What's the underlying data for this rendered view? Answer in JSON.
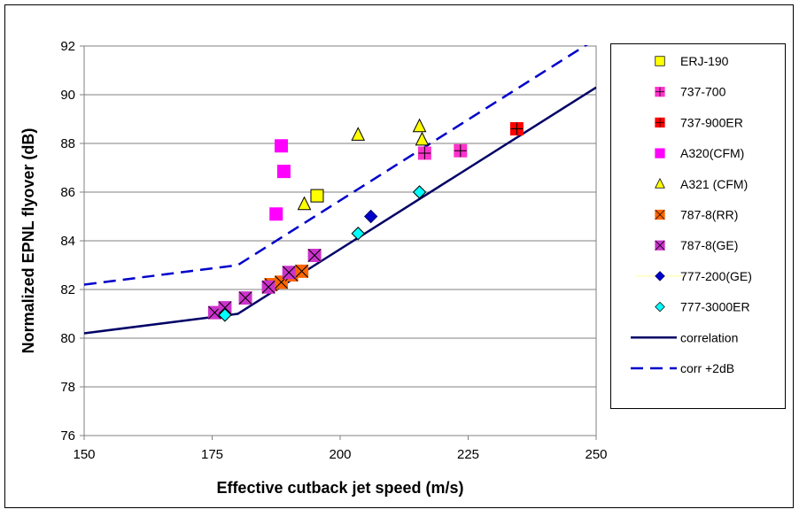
{
  "chart_data": {
    "type": "scatter",
    "xlabel": "Effective cutback jet speed (m/s)",
    "ylabel": "Normalized EPNL flyover  (dB)",
    "xlim": [
      150,
      250
    ],
    "ylim": [
      76,
      92
    ],
    "x_ticks": [
      "150",
      "175",
      "200",
      "225",
      "250"
    ],
    "y_ticks": [
      "76",
      "78",
      "80",
      "82",
      "84",
      "86",
      "88",
      "90",
      "92"
    ],
    "grid": "horizontal",
    "legend_position": "right",
    "series": [
      {
        "name": "ERJ-190",
        "marker": "square",
        "color": "#ffff00",
        "stroke": "#000000",
        "cross": false,
        "points": [
          [
            195.5,
            85.85
          ]
        ]
      },
      {
        "name": "737-700",
        "marker": "square",
        "color": "#ff33cc",
        "stroke": "#ff33cc",
        "cross": "plus",
        "points": [
          [
            216.5,
            87.6
          ],
          [
            223.5,
            87.7
          ]
        ]
      },
      {
        "name": "737-900ER",
        "marker": "square",
        "color": "#ff0000",
        "stroke": "#ff0000",
        "cross": "plus",
        "points": [
          [
            234.5,
            88.6
          ]
        ]
      },
      {
        "name": "A320(CFM)",
        "marker": "square",
        "color": "#ff00ff",
        "stroke": "#ff00ff",
        "cross": false,
        "points": [
          [
            187.5,
            85.1
          ],
          [
            188.5,
            87.9
          ],
          [
            189,
            86.85
          ]
        ]
      },
      {
        "name": "A321 (CFM)",
        "marker": "triangle",
        "color": "#ffff00",
        "stroke": "#000000",
        "cross": false,
        "points": [
          [
            193,
            85.5
          ],
          [
            203.5,
            88.35
          ],
          [
            215.5,
            88.7
          ],
          [
            216,
            88.15
          ]
        ]
      },
      {
        "name": "787-8(RR)",
        "marker": "square",
        "color": "#ff6600",
        "stroke": "#ff6600",
        "cross": "x",
        "points": [
          [
            186.5,
            82.2
          ],
          [
            188.5,
            82.3
          ],
          [
            190.5,
            82.6
          ],
          [
            192.5,
            82.75
          ]
        ]
      },
      {
        "name": "787-8(GE)",
        "marker": "square",
        "color": "#cc33cc",
        "stroke": "#cc33cc",
        "cross": "x",
        "points": [
          [
            175.5,
            81.05
          ],
          [
            177.5,
            81.25
          ],
          [
            181.5,
            81.65
          ],
          [
            186,
            82.1
          ],
          [
            190,
            82.7
          ],
          [
            195,
            83.4
          ]
        ]
      },
      {
        "name": "777-200(GE)",
        "marker": "diamond",
        "color": "#0000cc",
        "stroke": "#000066",
        "cross": false,
        "points": [
          [
            206,
            85.0
          ]
        ]
      },
      {
        "name": "777-3000ER",
        "marker": "diamond",
        "color": "#00ffff",
        "stroke": "#000000",
        "cross": false,
        "points": [
          [
            177.5,
            80.95
          ],
          [
            203.5,
            84.3
          ],
          [
            215.5,
            86.0
          ]
        ]
      }
    ],
    "lines": [
      {
        "name": "correlation",
        "style": "solid",
        "color": "#000066",
        "points": [
          [
            150,
            80.2
          ],
          [
            180,
            81.0
          ],
          [
            250,
            90.3
          ]
        ]
      },
      {
        "name": "corr +2dB",
        "style": "dashed",
        "color": "#0000cc",
        "points": [
          [
            150,
            82.2
          ],
          [
            180,
            83.0
          ],
          [
            250,
            92.3
          ]
        ]
      }
    ]
  }
}
